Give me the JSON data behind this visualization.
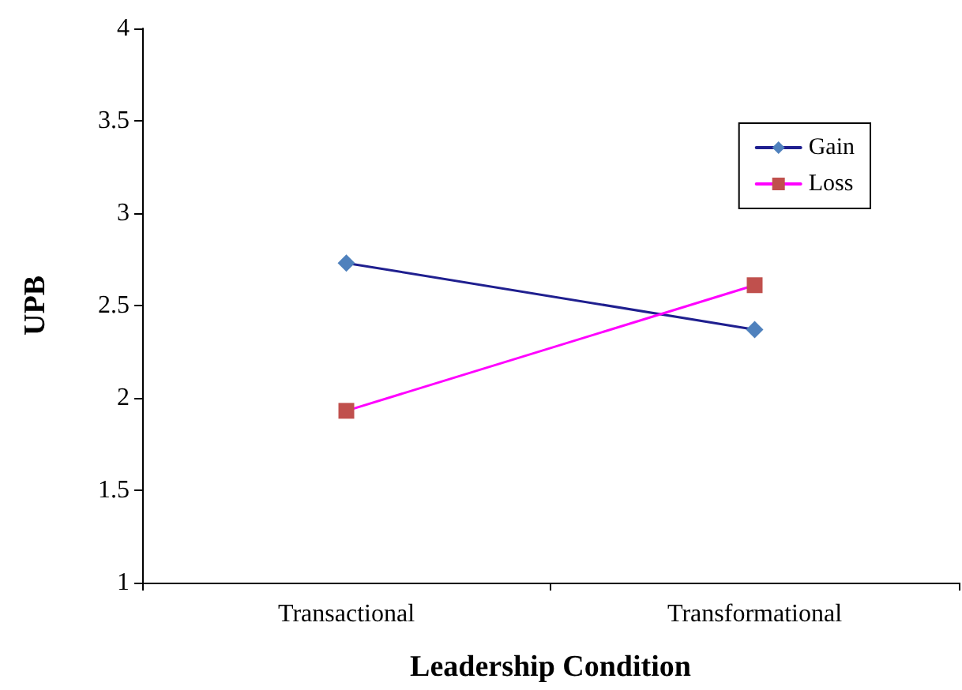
{
  "chart_data": {
    "type": "line",
    "xlabel": "Leadership Condition",
    "ylabel": "UPB",
    "categories": [
      "Transactional",
      "Transformational"
    ],
    "series": [
      {
        "name": "Gain",
        "color": "#1f1f8f",
        "values": [
          2.73,
          2.37
        ],
        "marker": "diamond"
      },
      {
        "name": "Loss",
        "color": "#ff00ff",
        "values": [
          1.93,
          2.61
        ],
        "marker": "square"
      }
    ],
    "ylim": [
      1,
      4
    ],
    "yticks": [
      1,
      1.5,
      2,
      2.5,
      3,
      3.5,
      4
    ],
    "grid": false,
    "legend": "top right",
    "line_style": "solid"
  }
}
